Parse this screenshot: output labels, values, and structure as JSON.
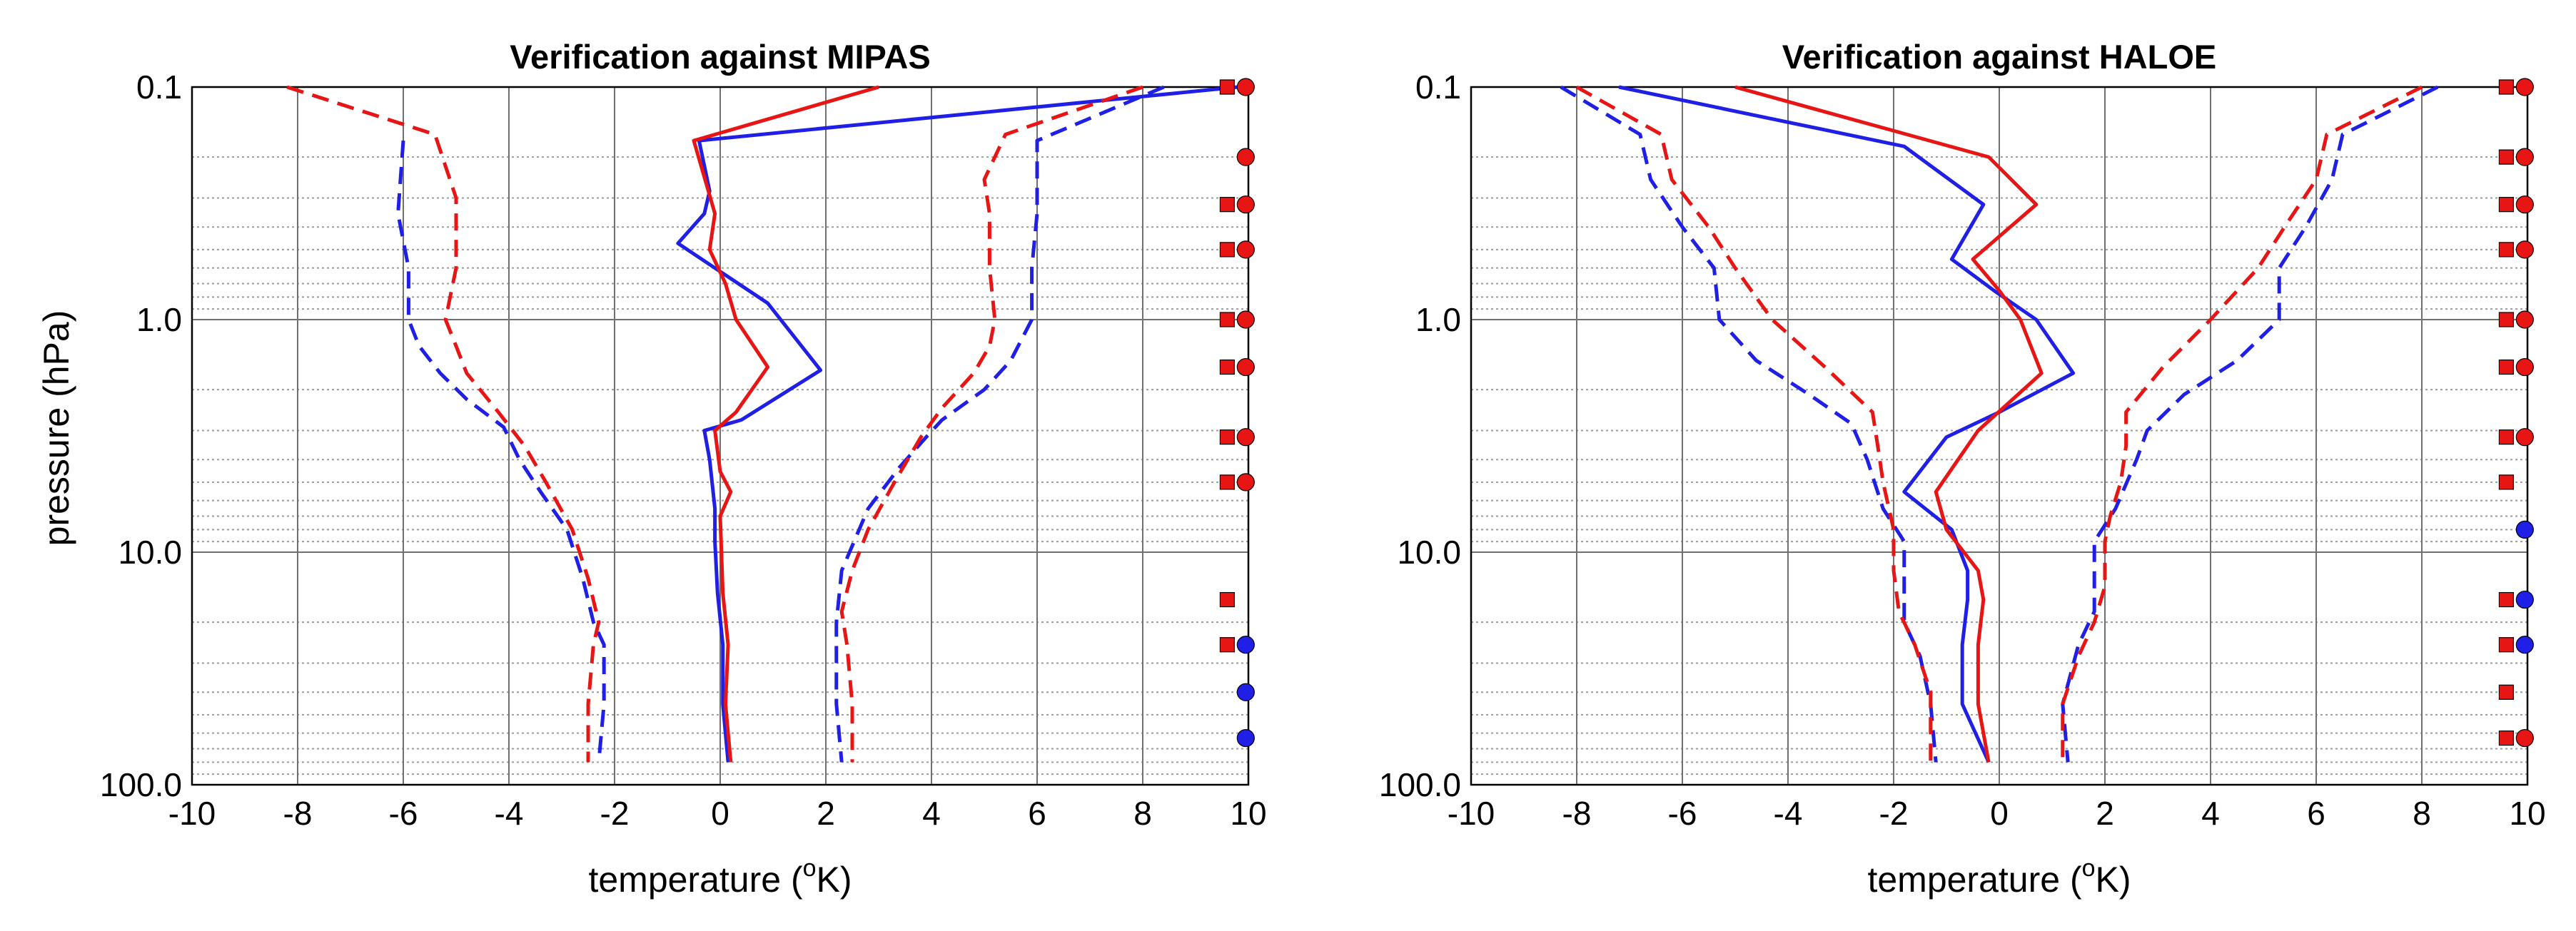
{
  "figure": {
    "ylabel": "pressure (hPa)"
  },
  "chart_data": [
    {
      "type": "line",
      "title": "Verification against MIPAS",
      "xlabel": "temperature (",
      "xlabel_sup": "o",
      "xlabel_tail": "K)",
      "xlim": [
        -10,
        10
      ],
      "ylim": [
        0.1,
        100.0
      ],
      "yscale": "log-reversed",
      "grid": true,
      "x_ticks": [
        "-10",
        "-8",
        "-6",
        "-4",
        "-2",
        "0",
        "2",
        "4",
        "6",
        "8",
        "10"
      ],
      "y_ticks": [
        "0.1",
        "1.0",
        "10.0",
        "100.0"
      ],
      "series": [
        {
          "name": "blue solid",
          "color": "#1f1fe6",
          "style": "solid",
          "points": [
            [
              9.8,
              0.1
            ],
            [
              -0.4,
              0.17
            ],
            [
              -0.2,
              0.28
            ],
            [
              -0.3,
              0.35
            ],
            [
              -0.8,
              0.47
            ],
            [
              -0.1,
              0.6
            ],
            [
              0.9,
              0.85
            ],
            [
              1.9,
              1.65
            ],
            [
              0.4,
              2.7
            ],
            [
              -0.3,
              3.0
            ],
            [
              -0.2,
              4.0
            ],
            [
              -0.1,
              6.5
            ],
            [
              -0.1,
              9.0
            ],
            [
              -0.05,
              15.0
            ],
            [
              0.05,
              25.0
            ],
            [
              0.05,
              45.0
            ],
            [
              0.15,
              80.0
            ]
          ]
        },
        {
          "name": "red solid",
          "color": "#e81515",
          "style": "solid",
          "points": [
            [
              3.0,
              0.1
            ],
            [
              -0.5,
              0.17
            ],
            [
              -0.1,
              0.35
            ],
            [
              -0.2,
              0.5
            ],
            [
              0.1,
              0.7
            ],
            [
              0.3,
              1.0
            ],
            [
              0.9,
              1.6
            ],
            [
              0.3,
              2.5
            ],
            [
              -0.1,
              3.0
            ],
            [
              0.0,
              4.5
            ],
            [
              0.2,
              5.5
            ],
            [
              0.0,
              7.0
            ],
            [
              0.05,
              15.0
            ],
            [
              0.15,
              25.0
            ],
            [
              0.1,
              45.0
            ],
            [
              0.2,
              80.0
            ]
          ]
        },
        {
          "name": "blue dashed low",
          "color": "#1f1fe6",
          "style": "dashed",
          "points": [
            [
              -6.0,
              0.17
            ],
            [
              -6.1,
              0.35
            ],
            [
              -5.9,
              0.6
            ],
            [
              -5.9,
              1.0
            ],
            [
              -5.7,
              1.3
            ],
            [
              -5.3,
              1.7
            ],
            [
              -4.8,
              2.2
            ],
            [
              -4.1,
              2.9
            ],
            [
              -3.8,
              4.0
            ],
            [
              -3.4,
              5.5
            ],
            [
              -2.9,
              8.0
            ],
            [
              -2.6,
              13.0
            ],
            [
              -2.4,
              20.0
            ],
            [
              -2.2,
              25.0
            ],
            [
              -2.2,
              45.0
            ],
            [
              -2.3,
              80.0
            ]
          ]
        },
        {
          "name": "red dashed low",
          "color": "#e81515",
          "style": "dashed",
          "points": [
            [
              -8.2,
              0.1
            ],
            [
              -5.4,
              0.16
            ],
            [
              -5.0,
              0.3
            ],
            [
              -5.0,
              0.6
            ],
            [
              -5.2,
              1.0
            ],
            [
              -5.0,
              1.3
            ],
            [
              -4.8,
              1.7
            ],
            [
              -4.2,
              2.5
            ],
            [
              -3.7,
              3.5
            ],
            [
              -3.3,
              5.0
            ],
            [
              -2.8,
              8.0
            ],
            [
              -2.5,
              13.0
            ],
            [
              -2.3,
              20.0
            ],
            [
              -2.4,
              25.0
            ],
            [
              -2.5,
              45.0
            ],
            [
              -2.5,
              80.0
            ]
          ]
        },
        {
          "name": "blue dashed high",
          "color": "#1f1fe6",
          "style": "dashed",
          "points": [
            [
              8.4,
              0.1
            ],
            [
              6.0,
              0.17
            ],
            [
              6.0,
              0.35
            ],
            [
              5.9,
              0.6
            ],
            [
              5.9,
              1.0
            ],
            [
              5.5,
              1.5
            ],
            [
              5.0,
              2.0
            ],
            [
              4.2,
              2.7
            ],
            [
              3.9,
              3.2
            ],
            [
              3.4,
              4.3
            ],
            [
              2.8,
              6.5
            ],
            [
              2.3,
              12.0
            ],
            [
              2.2,
              20.0
            ],
            [
              2.2,
              25.0
            ],
            [
              2.2,
              45.0
            ],
            [
              2.3,
              80.0
            ]
          ]
        },
        {
          "name": "red dashed high",
          "color": "#e81515",
          "style": "dashed",
          "points": [
            [
              8.0,
              0.1
            ],
            [
              5.4,
              0.16
            ],
            [
              5.0,
              0.25
            ],
            [
              5.1,
              0.35
            ],
            [
              5.1,
              0.6
            ],
            [
              5.2,
              1.0
            ],
            [
              5.1,
              1.3
            ],
            [
              4.8,
              1.7
            ],
            [
              4.2,
              2.4
            ],
            [
              3.8,
              3.2
            ],
            [
              3.3,
              5.0
            ],
            [
              2.8,
              8.0
            ],
            [
              2.5,
              12.0
            ],
            [
              2.3,
              18.0
            ],
            [
              2.4,
              25.0
            ],
            [
              2.5,
              45.0
            ],
            [
              2.5,
              80.0
            ]
          ]
        }
      ],
      "markers": {
        "squares": [
          {
            "y": 0.1,
            "color": "#e81515"
          },
          {
            "y": 0.32,
            "color": "#e81515"
          },
          {
            "y": 0.5,
            "color": "#e81515"
          },
          {
            "y": 1.0,
            "color": "#e81515"
          },
          {
            "y": 1.6,
            "color": "#e81515"
          },
          {
            "y": 3.2,
            "color": "#e81515"
          },
          {
            "y": 5.0,
            "color": "#e81515"
          },
          {
            "y": 16.0,
            "color": "#e81515"
          },
          {
            "y": 25.0,
            "color": "#e81515"
          }
        ],
        "circles": [
          {
            "y": 0.1,
            "color": "#e81515"
          },
          {
            "y": 0.2,
            "color": "#e81515"
          },
          {
            "y": 0.32,
            "color": "#e81515"
          },
          {
            "y": 0.5,
            "color": "#e81515"
          },
          {
            "y": 1.0,
            "color": "#e81515"
          },
          {
            "y": 1.6,
            "color": "#e81515"
          },
          {
            "y": 3.2,
            "color": "#e81515"
          },
          {
            "y": 5.0,
            "color": "#e81515"
          },
          {
            "y": 25.0,
            "color": "#1f1fe6"
          },
          {
            "y": 40.0,
            "color": "#1f1fe6"
          },
          {
            "y": 63.0,
            "color": "#1f1fe6"
          }
        ]
      }
    },
    {
      "type": "line",
      "title": "Verification against HALOE",
      "xlabel": "temperature (",
      "xlabel_sup": "o",
      "xlabel_tail": "K)",
      "xlim": [
        -10,
        10
      ],
      "ylim": [
        0.1,
        100.0
      ],
      "yscale": "log-reversed",
      "grid": true,
      "x_ticks": [
        "-10",
        "-8",
        "-6",
        "-4",
        "-2",
        "0",
        "2",
        "4",
        "6",
        "8",
        "10"
      ],
      "y_ticks": [
        "0.1",
        "1.0",
        "10.0",
        "100.0"
      ],
      "series": [
        {
          "name": "blue solid",
          "color": "#1f1fe6",
          "style": "solid",
          "points": [
            [
              -7.2,
              0.1
            ],
            [
              -1.8,
              0.18
            ],
            [
              -0.3,
              0.32
            ],
            [
              -0.9,
              0.55
            ],
            [
              -0.1,
              0.75
            ],
            [
              0.7,
              1.0
            ],
            [
              1.4,
              1.7
            ],
            [
              0.0,
              2.5
            ],
            [
              -1.0,
              3.2
            ],
            [
              -1.8,
              5.5
            ],
            [
              -0.9,
              8.0
            ],
            [
              -0.6,
              12.0
            ],
            [
              -0.6,
              16.0
            ],
            [
              -0.7,
              25.0
            ],
            [
              -0.7,
              45.0
            ],
            [
              -0.2,
              80.0
            ]
          ]
        },
        {
          "name": "red solid",
          "color": "#e81515",
          "style": "solid",
          "points": [
            [
              -5.0,
              0.1
            ],
            [
              -0.2,
              0.2
            ],
            [
              0.7,
              0.32
            ],
            [
              -0.5,
              0.55
            ],
            [
              0.0,
              0.75
            ],
            [
              0.4,
              1.0
            ],
            [
              0.8,
              1.7
            ],
            [
              -0.4,
              3.0
            ],
            [
              -1.2,
              5.5
            ],
            [
              -1.0,
              8.0
            ],
            [
              -0.4,
              12.0
            ],
            [
              -0.3,
              16.0
            ],
            [
              -0.4,
              25.0
            ],
            [
              -0.4,
              45.0
            ],
            [
              -0.2,
              80.0
            ]
          ]
        },
        {
          "name": "blue dashed low",
          "color": "#1f1fe6",
          "style": "dashed",
          "points": [
            [
              -8.3,
              0.1
            ],
            [
              -6.8,
              0.16
            ],
            [
              -6.6,
              0.25
            ],
            [
              -6.0,
              0.4
            ],
            [
              -5.4,
              0.6
            ],
            [
              -5.3,
              1.0
            ],
            [
              -4.6,
              1.5
            ],
            [
              -3.6,
              2.1
            ],
            [
              -2.8,
              2.8
            ],
            [
              -2.5,
              4.0
            ],
            [
              -2.2,
              6.5
            ],
            [
              -1.8,
              9.0
            ],
            [
              -1.8,
              14.0
            ],
            [
              -1.8,
              20.0
            ],
            [
              -1.5,
              28.0
            ],
            [
              -1.3,
              45.0
            ],
            [
              -1.2,
              80.0
            ]
          ]
        },
        {
          "name": "red dashed low",
          "color": "#e81515",
          "style": "dashed",
          "points": [
            [
              -8.0,
              0.1
            ],
            [
              -6.4,
              0.16
            ],
            [
              -6.2,
              0.25
            ],
            [
              -5.5,
              0.4
            ],
            [
              -5.0,
              0.6
            ],
            [
              -4.3,
              1.0
            ],
            [
              -3.3,
              1.6
            ],
            [
              -2.4,
              2.5
            ],
            [
              -2.3,
              3.5
            ],
            [
              -2.2,
              5.0
            ],
            [
              -2.0,
              8.0
            ],
            [
              -2.0,
              12.0
            ],
            [
              -1.9,
              18.0
            ],
            [
              -1.6,
              25.0
            ],
            [
              -1.3,
              40.0
            ],
            [
              -1.3,
              80.0
            ]
          ]
        },
        {
          "name": "blue dashed high",
          "color": "#1f1fe6",
          "style": "dashed",
          "points": [
            [
              8.3,
              0.1
            ],
            [
              6.5,
              0.16
            ],
            [
              6.3,
              0.25
            ],
            [
              5.8,
              0.4
            ],
            [
              5.3,
              0.6
            ],
            [
              5.3,
              1.0
            ],
            [
              4.5,
              1.5
            ],
            [
              3.5,
              2.1
            ],
            [
              2.8,
              3.0
            ],
            [
              2.6,
              4.0
            ],
            [
              2.2,
              6.5
            ],
            [
              1.8,
              9.0
            ],
            [
              1.8,
              12.0
            ],
            [
              1.8,
              18.0
            ],
            [
              1.5,
              25.0
            ],
            [
              1.2,
              45.0
            ],
            [
              1.3,
              80.0
            ]
          ]
        },
        {
          "name": "red dashed high",
          "color": "#e81515",
          "style": "dashed",
          "points": [
            [
              8.0,
              0.1
            ],
            [
              6.2,
              0.16
            ],
            [
              6.0,
              0.25
            ],
            [
              5.4,
              0.4
            ],
            [
              4.9,
              0.6
            ],
            [
              4.0,
              1.0
            ],
            [
              3.1,
              1.6
            ],
            [
              2.4,
              2.5
            ],
            [
              2.4,
              3.5
            ],
            [
              2.3,
              5.0
            ],
            [
              2.1,
              7.0
            ],
            [
              2.0,
              9.0
            ],
            [
              2.0,
              14.0
            ],
            [
              1.8,
              20.0
            ],
            [
              1.5,
              28.0
            ],
            [
              1.2,
              45.0
            ],
            [
              1.2,
              80.0
            ]
          ]
        }
      ],
      "markers": {
        "squares": [
          {
            "y": 0.1,
            "color": "#e81515"
          },
          {
            "y": 0.2,
            "color": "#e81515"
          },
          {
            "y": 0.32,
            "color": "#e81515"
          },
          {
            "y": 0.5,
            "color": "#e81515"
          },
          {
            "y": 1.0,
            "color": "#e81515"
          },
          {
            "y": 1.6,
            "color": "#e81515"
          },
          {
            "y": 3.2,
            "color": "#e81515"
          },
          {
            "y": 5.0,
            "color": "#e81515"
          },
          {
            "y": 16.0,
            "color": "#e81515"
          },
          {
            "y": 25.0,
            "color": "#e81515"
          },
          {
            "y": 40.0,
            "color": "#e81515"
          },
          {
            "y": 63.0,
            "color": "#e81515"
          }
        ],
        "circles": [
          {
            "y": 0.1,
            "color": "#e81515"
          },
          {
            "y": 0.2,
            "color": "#e81515"
          },
          {
            "y": 0.32,
            "color": "#e81515"
          },
          {
            "y": 0.5,
            "color": "#e81515"
          },
          {
            "y": 1.0,
            "color": "#e81515"
          },
          {
            "y": 1.6,
            "color": "#e81515"
          },
          {
            "y": 3.2,
            "color": "#e81515"
          },
          {
            "y": 8.0,
            "color": "#1f1fe6"
          },
          {
            "y": 16.0,
            "color": "#1f1fe6"
          },
          {
            "y": 25.0,
            "color": "#1f1fe6"
          },
          {
            "y": 63.0,
            "color": "#e81515"
          }
        ]
      }
    }
  ]
}
